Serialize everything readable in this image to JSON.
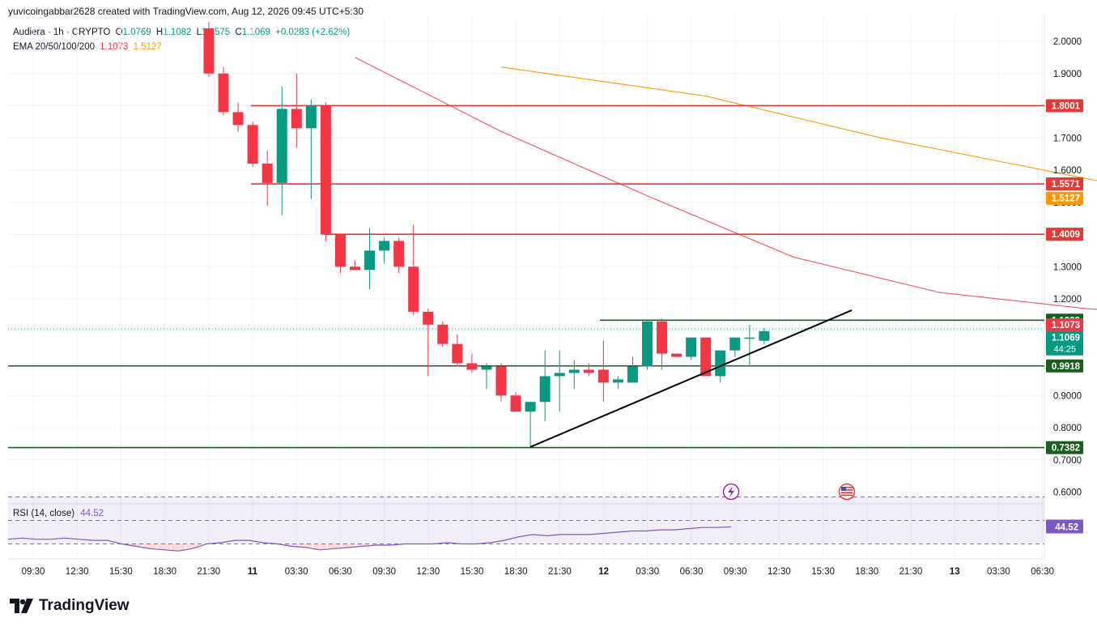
{
  "credit": "yuvicoingabbar2628 created with TradingView.com, Aug 12, 2026 09:45 UTC+5:30",
  "legend": {
    "symbol": "Audiera · 1h · CRYPTO",
    "o_label": "O",
    "o": "1.0769",
    "h_label": "H",
    "h": "1.1082",
    "l_label": "L",
    "l": "1.0575",
    "c_label": "C",
    "c": "1.1069",
    "change": "+0.0283 (+2.62%)",
    "ema_label": "EMA 20/50/100/200",
    "ema20": "1.1073",
    "ema50": "1.5127"
  },
  "rsi_legend": {
    "label": "RSI (14, close)",
    "value": "44.52"
  },
  "brand": "TradingView",
  "colors": {
    "up": "#089981",
    "down": "#f23645",
    "ema20": "#f7525f",
    "ema50": "#ff9800",
    "resistance": "#e53935",
    "support": "#1b5e20",
    "trendline": "#000000",
    "rsi": "#7e57c2"
  },
  "chart_data": {
    "type": "candlestick",
    "timeframe": "1h",
    "x_ticks": [
      "09:30",
      "12:30",
      "15:30",
      "18:30",
      "21:30",
      "11",
      "03:30",
      "06:30",
      "09:30",
      "12:30",
      "15:30",
      "18:30",
      "21:30",
      "12",
      "03:30",
      "06:30",
      "09:30",
      "12:30",
      "15:30",
      "18:30",
      "21:30",
      "13",
      "03:30",
      "06:30"
    ],
    "y_ticks": [
      "2.0000",
      "1.9000",
      "1.8000",
      "1.7000",
      "1.6000",
      "1.5000",
      "1.4000",
      "1.3000",
      "1.2000",
      "1.1000",
      "1.0000",
      "0.9000",
      "0.8000",
      "0.7000",
      "0.6000"
    ],
    "ylim": [
      0.575,
      2.04
    ],
    "candles": [
      {
        "o": 2.04,
        "h": 2.06,
        "l": 1.89,
        "c": 1.9
      },
      {
        "o": 1.9,
        "h": 1.92,
        "l": 1.77,
        "c": 1.78
      },
      {
        "o": 1.78,
        "h": 1.81,
        "l": 1.72,
        "c": 1.74
      },
      {
        "o": 1.74,
        "h": 1.75,
        "l": 1.61,
        "c": 1.62
      },
      {
        "o": 1.62,
        "h": 1.66,
        "l": 1.49,
        "c": 1.56
      },
      {
        "o": 1.56,
        "h": 1.86,
        "l": 1.46,
        "c": 1.79
      },
      {
        "o": 1.79,
        "h": 1.9,
        "l": 1.67,
        "c": 1.73
      },
      {
        "o": 1.73,
        "h": 1.82,
        "l": 1.51,
        "c": 1.8
      },
      {
        "o": 1.8,
        "h": 1.81,
        "l": 1.38,
        "c": 1.4
      },
      {
        "o": 1.4,
        "h": 1.4,
        "l": 1.28,
        "c": 1.3
      },
      {
        "o": 1.3,
        "h": 1.32,
        "l": 1.29,
        "c": 1.29
      },
      {
        "o": 1.29,
        "h": 1.42,
        "l": 1.23,
        "c": 1.35
      },
      {
        "o": 1.35,
        "h": 1.39,
        "l": 1.31,
        "c": 1.38
      },
      {
        "o": 1.38,
        "h": 1.39,
        "l": 1.28,
        "c": 1.3
      },
      {
        "o": 1.3,
        "h": 1.43,
        "l": 1.15,
        "c": 1.16
      },
      {
        "o": 1.16,
        "h": 1.17,
        "l": 0.96,
        "c": 1.12
      },
      {
        "o": 1.12,
        "h": 1.13,
        "l": 1.05,
        "c": 1.06
      },
      {
        "o": 1.06,
        "h": 1.09,
        "l": 0.99,
        "c": 1.0
      },
      {
        "o": 1.0,
        "h": 1.03,
        "l": 0.97,
        "c": 0.98
      },
      {
        "o": 0.98,
        "h": 1.0,
        "l": 0.92,
        "c": 0.99
      },
      {
        "o": 0.99,
        "h": 1.0,
        "l": 0.88,
        "c": 0.9
      },
      {
        "o": 0.9,
        "h": 0.91,
        "l": 0.85,
        "c": 0.85
      },
      {
        "o": 0.85,
        "h": 0.88,
        "l": 0.74,
        "c": 0.88
      },
      {
        "o": 0.88,
        "h": 1.04,
        "l": 0.82,
        "c": 0.96
      },
      {
        "o": 0.96,
        "h": 1.04,
        "l": 0.85,
        "c": 0.97
      },
      {
        "o": 0.97,
        "h": 1.01,
        "l": 0.92,
        "c": 0.98
      },
      {
        "o": 0.98,
        "h": 1.0,
        "l": 0.96,
        "c": 0.97
      },
      {
        "o": 0.98,
        "h": 1.07,
        "l": 0.88,
        "c": 0.94
      },
      {
        "o": 0.94,
        "h": 0.96,
        "l": 0.92,
        "c": 0.95
      },
      {
        "o": 0.94,
        "h": 1.02,
        "l": 0.94,
        "c": 0.99
      },
      {
        "o": 0.99,
        "h": 1.13,
        "l": 0.98,
        "c": 1.13
      },
      {
        "o": 1.13,
        "h": 1.14,
        "l": 0.98,
        "c": 1.03
      },
      {
        "o": 1.03,
        "h": 1.03,
        "l": 1.02,
        "c": 1.02
      },
      {
        "o": 1.02,
        "h": 1.08,
        "l": 1.01,
        "c": 1.08
      },
      {
        "o": 1.08,
        "h": 1.08,
        "l": 0.96,
        "c": 0.96
      },
      {
        "o": 0.96,
        "h": 1.03,
        "l": 0.94,
        "c": 1.04
      },
      {
        "o": 1.04,
        "h": 1.08,
        "l": 1.02,
        "c": 1.08
      },
      {
        "o": 1.08,
        "h": 1.12,
        "l": 0.99,
        "c": 1.08
      },
      {
        "o": 1.07,
        "h": 1.11,
        "l": 1.06,
        "c": 1.1
      }
    ],
    "ema20": [
      [
        10,
        1.95
      ],
      [
        20,
        1.72
      ],
      [
        30,
        1.52
      ],
      [
        40,
        1.33
      ],
      [
        50,
        1.22
      ],
      [
        60,
        1.17
      ],
      [
        70,
        1.14
      ],
      [
        80,
        1.122
      ],
      [
        89.2,
        1.106
      ]
    ],
    "ema50": [
      [
        20,
        1.92
      ],
      [
        34,
        1.83
      ],
      [
        46,
        1.7
      ],
      [
        56,
        1.61
      ],
      [
        66,
        1.52
      ],
      [
        72,
        1.5
      ],
      [
        89.2,
        1.51
      ]
    ],
    "horizontal_levels": [
      {
        "value": 1.8001,
        "label": "1.8001",
        "kind": "resistance"
      },
      {
        "value": 1.5571,
        "label": "1.5571",
        "kind": "resistance"
      },
      {
        "value": 1.4009,
        "label": "1.4009",
        "kind": "resistance"
      },
      {
        "value": 1.1339,
        "label": "1.1339",
        "kind": "support"
      },
      {
        "value": 0.9918,
        "label": "0.9918",
        "kind": "support"
      },
      {
        "value": 0.7382,
        "label": "0.7382",
        "kind": "support"
      }
    ],
    "price_labels": [
      {
        "label": "1.5127",
        "kind": "ema50"
      },
      {
        "label": "1.1073",
        "kind": "ema20"
      },
      {
        "label": "1.1069",
        "kind": "last"
      }
    ],
    "last_price": 1.1069,
    "countdown": "44:25",
    "trendline": [
      [
        0.74,
        22
      ],
      [
        1.165,
        44
      ]
    ],
    "rsi": {
      "values": [
        34,
        35,
        34,
        34,
        35,
        34,
        33,
        33,
        30,
        28,
        26,
        25,
        24,
        26,
        30,
        31,
        33,
        33,
        31,
        30,
        28,
        27,
        25,
        26,
        27,
        28,
        29,
        29,
        30,
        30,
        30,
        31,
        30,
        30,
        31,
        33,
        36,
        38,
        37,
        38,
        38,
        38,
        39,
        40,
        41,
        41,
        42,
        42,
        43,
        44,
        44,
        44.52
      ],
      "upper": 70,
      "lower": 30,
      "current": "44.52"
    }
  }
}
